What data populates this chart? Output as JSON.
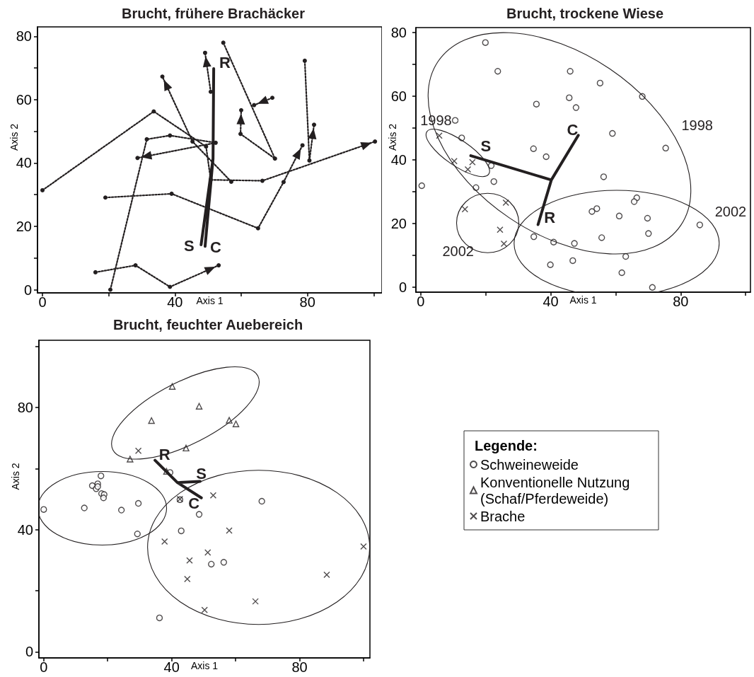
{
  "chart_data": [
    {
      "type": "line",
      "title": "Brucht, frühere Brachäcker",
      "xlabel": "Axis 1",
      "ylabel": "Axis 2",
      "xlim": [
        -1.5,
        102.5
      ],
      "ylim": [
        -1,
        83
      ],
      "xticks": [
        0,
        {
          "value": 20,
          "label": null
        },
        40,
        {
          "value": 60,
          "label": null
        },
        80,
        {
          "value": 100,
          "label": null
        }
      ],
      "yticks": [
        0,
        {
          "value": 10,
          "label": null
        },
        20,
        {
          "value": 30,
          "label": null
        },
        40,
        {
          "value": 50,
          "label": null
        },
        60,
        {
          "value": 70,
          "label": null
        },
        80
      ],
      "grid": false,
      "marker": "circle",
      "line_style": "dotted",
      "series": [
        {
          "color": "#231f20",
          "x": [
            0,
            33.6,
            49.4,
            50.8,
            66.4,
            100.4
          ],
          "values": [
            31.4,
            56.3,
            45.2,
            34.7,
            34.4,
            46.8
          ]
        },
        {
          "color": "#231f20",
          "x": [
            19,
            39,
            65.1,
            72.8,
            78.5
          ],
          "values": [
            29.1,
            30.3,
            19.4,
            34,
            45.6
          ]
        },
        {
          "color": "#231f20",
          "x": [
            16,
            28.1,
            38.5,
            53.2
          ],
          "values": [
            5.5,
            7.7,
            0.9,
            7.7
          ]
        },
        {
          "color": "#231f20",
          "x": [
            20.5,
            31.5,
            38.5,
            52.3,
            28.7
          ],
          "values": [
            0,
            47.5,
            48.7,
            46.4,
            41.6
          ]
        },
        {
          "color": "#231f20",
          "x": [
            57,
            45.3,
            36.2
          ],
          "values": [
            34.1,
            46.8,
            67.3
          ]
        },
        {
          "color": "#231f20",
          "x": [
            79.2,
            80.6,
            82
          ],
          "values": [
            72.3,
            40.8,
            52.1
          ]
        },
        {
          "color": "#231f20",
          "x": [
            54.6,
            70.2,
            59.8,
            60
          ],
          "values": [
            78,
            41.4,
            49.2,
            56.7
          ]
        },
        {
          "color": "#231f20",
          "x": [
            69.4,
            63.9
          ],
          "values": [
            60.6,
            58.3
          ]
        },
        {
          "color": "#231f20",
          "x": [
            50.8,
            49.1
          ],
          "values": [
            62.5,
            74.8
          ]
        },
        {
          "color": "#231f20",
          "marker": "none",
          "line_style": "solid",
          "x": [
            51.7,
            51.5,
            47.9,
            51.5,
            49.1
          ],
          "values": [
            69.8,
            41.4,
            14.2,
            41.4,
            13.7
          ]
        }
      ],
      "annotations": [
        "R",
        "S",
        "C"
      ]
    },
    {
      "type": "scatter",
      "title": "Brucht, trockene Wiese",
      "xlabel": "Axis 1",
      "ylabel": "Axis 2",
      "xlim": [
        -1.5,
        101.5
      ],
      "ylim": [
        -1.5,
        81.5
      ],
      "xticks": [
        0,
        {
          "value": 20,
          "label": null
        },
        40,
        {
          "value": 60,
          "label": null
        },
        80,
        {
          "value": 100,
          "label": null
        }
      ],
      "yticks": [
        0,
        {
          "value": 10,
          "label": null
        },
        20,
        {
          "value": 30,
          "label": null
        },
        40,
        {
          "value": 50,
          "label": null
        },
        60,
        {
          "value": 70,
          "label": null
        },
        80
      ],
      "grid": false,
      "series": [
        {
          "color": "#231f20",
          "marker": "circle",
          "x": [
            19.9,
            23.7,
            46,
            55.2,
            68.2,
            35.6,
            45.7,
            47.8,
            10.6,
            59,
            12.6,
            75.4,
            34.7,
            38.6,
            21.7,
            22.5,
            0.3,
            17,
            56.3,
            66.5,
            65.7,
            54.2,
            52.7,
            61.1,
            69.8,
            85.9,
            70.1,
            34.8,
            55.7,
            40.9,
            47.3,
            63.1,
            46.8,
            39.9,
            61.9,
            71.3
          ],
          "values": [
            76.8,
            67.8,
            67.8,
            64.1,
            59.9,
            57.5,
            59.5,
            56.4,
            52.4,
            48.3,
            46.9,
            43.7,
            43.5,
            41,
            38.2,
            33.2,
            31.9,
            31.3,
            34.7,
            28.1,
            26.9,
            24.7,
            23.8,
            22.4,
            21.7,
            19.6,
            16.9,
            15.9,
            15.6,
            14.2,
            13.8,
            9.7,
            8.4,
            7.1,
            4.6,
            0
          ]
        },
        {
          "color": "#231f20",
          "marker": "cross",
          "x": [
            5.7,
            10.3,
            15.9,
            14.5,
            13.6,
            26.2,
            24.4,
            25.6
          ],
          "values": [
            47.6,
            39.6,
            39.3,
            37,
            24.5,
            26.6,
            18.1,
            13.7
          ]
        },
        {
          "type": "line",
          "color": "#231f20",
          "marker": "none",
          "x": [
            15.4,
            40.2,
            48.5,
            40.2,
            36.1
          ],
          "values": [
            41.3,
            33.7,
            47.7,
            33.7,
            19.7
          ]
        }
      ],
      "annotations": [
        "S",
        "C",
        "R",
        "1998",
        "1998",
        "2002",
        "2002"
      ]
    },
    {
      "type": "scatter",
      "title": "Brucht, feuchter Auebereich",
      "xlabel": "Axis 1",
      "ylabel": "Axis 2",
      "xlim": [
        -1.5,
        102
      ],
      "ylim": [
        -2,
        102
      ],
      "xticks": [
        0,
        {
          "value": 20,
          "label": null
        },
        40,
        {
          "value": 60,
          "label": null
        },
        80,
        {
          "value": 100,
          "label": null
        }
      ],
      "yticks": [
        0,
        {
          "value": 20,
          "label": null
        },
        40,
        {
          "value": 60,
          "label": null
        },
        80,
        {
          "value": 100,
          "label": null
        }
      ],
      "grid": false,
      "legend": "right",
      "legend_title": "Legende:",
      "series": [
        {
          "name": "Schweineweide",
          "color": "#231f20",
          "marker": "circle",
          "x": [
            0,
            12.7,
            15.2,
            16.9,
            16.4,
            16.9,
            17.9,
            18.1,
            18.9,
            18.7,
            24.3,
            29.6,
            29.3,
            39.5,
            42.6,
            48.6,
            43,
            68.2,
            52.4,
            56.3,
            36.2
          ],
          "values": [
            46.6,
            47.1,
            54.4,
            55,
            53.4,
            54.1,
            57.6,
            51.8,
            51.5,
            50.4,
            46.4,
            48.6,
            38.6,
            58.7,
            49.8,
            45,
            39.6,
            49.3,
            28.7,
            29.3,
            11.1
          ]
        },
        {
          "name": "Konventionelle Nutzung (Schaf/Pferdeweide)",
          "color": "#231f20",
          "marker": "triangle",
          "x": [
            40.2,
            48.6,
            33.7,
            58,
            60.1,
            44.5,
            27,
            38.4
          ],
          "values": [
            86.9,
            80.4,
            75.7,
            75.8,
            74.6,
            66.7,
            63.1,
            59.1
          ]
        },
        {
          "name": "Brache",
          "color": "#231f20",
          "marker": "cross",
          "x": [
            29.6,
            42.6,
            53,
            58,
            37.8,
            51.3,
            45.6,
            44.9,
            50.3,
            66.2,
            88.5,
            100
          ],
          "values": [
            65.8,
            50,
            51.2,
            39.7,
            36.1,
            32.5,
            29.9,
            23.8,
            13.7,
            16.5,
            25.2,
            34.5
          ]
        },
        {
          "type": "line",
          "color": "#231f20",
          "marker": "none",
          "x": [
            34.8,
            41.8,
            48.9,
            41.8,
            49.3
          ],
          "values": [
            62.7,
            55.4,
            55.8,
            55.4,
            50.4
          ]
        }
      ],
      "annotations": [
        "R",
        "S",
        "C"
      ]
    }
  ]
}
